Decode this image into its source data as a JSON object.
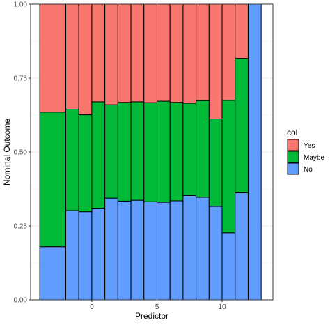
{
  "chart_data": {
    "type": "bar",
    "stacked": true,
    "xlabel": "Predictor",
    "ylabel": "Nominal Outcome",
    "xlim": [
      -4.7,
      13.9
    ],
    "ylim": [
      0,
      1
    ],
    "x_ticks": [
      0,
      5,
      10
    ],
    "y_ticks": [
      0,
      0.25,
      0.5,
      0.75,
      1
    ],
    "y_tick_labels": [
      "0.00",
      "0.25",
      "0.50",
      "0.75",
      "1.00"
    ],
    "bar_width": 2,
    "grid": true,
    "legend": {
      "title": "col",
      "placement": "right",
      "entries": [
        "Yes",
        "Maybe",
        "No"
      ]
    },
    "colors": {
      "Yes": "#F8766D",
      "Maybe": "#00BA38",
      "No": "#619CFF"
    },
    "bars": [
      {
        "x": -3,
        "No": 0.18,
        "Maybe": 0.455,
        "Yes": 0.365
      },
      {
        "x": -1.5,
        "No": 0.302,
        "Maybe": 0.343,
        "Yes": 0.355
      },
      {
        "x": -0.5,
        "No": 0.298,
        "Maybe": 0.328,
        "Yes": 0.374
      },
      {
        "x": 0.5,
        "No": 0.31,
        "Maybe": 0.36,
        "Yes": 0.33
      },
      {
        "x": 1.5,
        "No": 0.344,
        "Maybe": 0.316,
        "Yes": 0.34
      },
      {
        "x": 2.5,
        "No": 0.334,
        "Maybe": 0.334,
        "Yes": 0.332
      },
      {
        "x": 3.5,
        "No": 0.337,
        "Maybe": 0.333,
        "Yes": 0.33
      },
      {
        "x": 4.5,
        "No": 0.332,
        "Maybe": 0.335,
        "Yes": 0.333
      },
      {
        "x": 5.5,
        "No": 0.33,
        "Maybe": 0.342,
        "Yes": 0.328
      },
      {
        "x": 6.5,
        "No": 0.335,
        "Maybe": 0.333,
        "Yes": 0.332
      },
      {
        "x": 7.5,
        "No": 0.353,
        "Maybe": 0.312,
        "Yes": 0.335
      },
      {
        "x": 8.5,
        "No": 0.347,
        "Maybe": 0.327,
        "Yes": 0.326
      },
      {
        "x": 9.5,
        "No": 0.316,
        "Maybe": 0.296,
        "Yes": 0.388
      },
      {
        "x": 10.5,
        "No": 0.227,
        "Maybe": 0.448,
        "Yes": 0.325
      },
      {
        "x": 11.5,
        "No": 0.362,
        "Maybe": 0.455,
        "Yes": 0.183
      },
      {
        "x": 12.5,
        "No": 1.0,
        "Maybe": 0.0,
        "Yes": 0.0
      }
    ],
    "bar_edges": [
      [
        -4,
        -2
      ],
      [
        -2,
        -1
      ],
      [
        -1,
        0
      ],
      [
        0,
        1
      ],
      [
        1,
        2
      ],
      [
        2,
        3
      ],
      [
        3,
        4
      ],
      [
        4,
        5
      ],
      [
        5,
        6
      ],
      [
        6,
        7
      ],
      [
        7,
        8
      ],
      [
        8,
        9
      ],
      [
        9,
        10
      ],
      [
        10,
        11
      ],
      [
        11,
        12
      ],
      [
        12,
        13
      ]
    ]
  }
}
